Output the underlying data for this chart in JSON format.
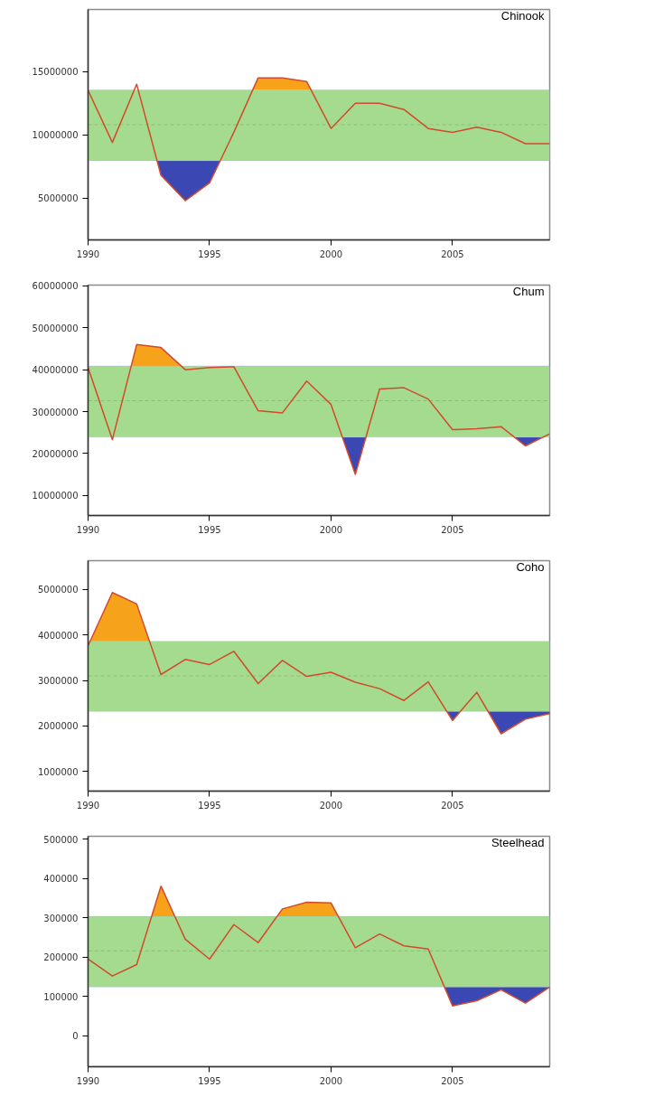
{
  "chart_data": [
    {
      "type": "line",
      "title": "Chinook",
      "x": [
        1990,
        1991,
        1992,
        1993,
        1994,
        1995,
        1996,
        1997,
        1998,
        1999,
        2000,
        2001,
        2002,
        2003,
        2004,
        2005,
        2006,
        2007,
        2008,
        2009
      ],
      "series": [
        {
          "color": "#d2492e",
          "values": [
            13500000,
            9400000,
            14000000,
            6800000,
            4800000,
            6200000,
            10200000,
            14500000,
            14500000,
            14200000,
            10500000,
            12500000,
            12500000,
            12000000,
            10500000,
            10200000,
            10600000,
            10200000,
            9300000,
            9300000
          ]
        },
        {
          "type": "area",
          "color": "#f7a21b",
          "x": [
            1996.78,
            1997,
            1998,
            1999,
            1999.18
          ],
          "values": [
            13550000,
            14500000,
            14500000,
            14200000,
            13550000
          ]
        },
        {
          "type": "area",
          "color": "#3b47b2",
          "x": [
            1992.84,
            1993,
            1994,
            1995,
            1995.44
          ],
          "values": [
            7950000,
            6800000,
            4800000,
            6200000,
            7950000
          ]
        }
      ],
      "xlim": [
        1990,
        2009
      ],
      "ylim": [
        1700000,
        19900000
      ],
      "xticks": [
        1990,
        1995,
        2000,
        2005
      ],
      "yticks": [
        5000000,
        10000000,
        15000000
      ],
      "bands": [
        {
          "axis": "y",
          "from": 7950000,
          "to": 13550000,
          "color": "#a5db8e"
        }
      ],
      "ref_lines": [
        {
          "axis": "y",
          "value": 10800000,
          "line_style": "dashed",
          "color": "#8cbf78"
        }
      ]
    },
    {
      "type": "line",
      "title": "Chum",
      "x": [
        1990,
        1991,
        1992,
        1993,
        1994,
        1995,
        1996,
        1997,
        1998,
        1999,
        2000,
        2001,
        2002,
        2003,
        2004,
        2005,
        2006,
        2007,
        2008,
        2009
      ],
      "series": [
        {
          "color": "#d2492e",
          "values": [
            40500000,
            23300000,
            46000000,
            45300000,
            40000000,
            40500000,
            40700000,
            30200000,
            29700000,
            37300000,
            31700000,
            15000000,
            35400000,
            35700000,
            33000000,
            25700000,
            25900000,
            26400000,
            21800000,
            24700000
          ]
        },
        {
          "type": "area",
          "color": "#f7a21b",
          "x": [
            1991.78,
            1992,
            1993,
            1993.83
          ],
          "values": [
            40900000,
            46000000,
            45300000,
            40900000
          ]
        },
        {
          "type": "area",
          "color": "#3b47b2",
          "x": [
            2000.47,
            2001,
            2001.44,
            2005,
            2007.54,
            2008,
            2008.72
          ],
          "values": [
            23900000,
            15000000,
            23900000,
            null,
            23900000,
            21800000,
            23900000
          ]
        }
      ],
      "xlim": [
        1990,
        2009
      ],
      "ylim": [
        5200000,
        60200000
      ],
      "xticks": [
        1990,
        1995,
        2000,
        2005
      ],
      "yticks": [
        10000000,
        20000000,
        30000000,
        40000000,
        50000000,
        60000000
      ],
      "bands": [
        {
          "axis": "y",
          "from": 23900000,
          "to": 40900000,
          "color": "#a5db8e"
        }
      ],
      "ref_lines": [
        {
          "axis": "y",
          "value": 32600000,
          "line_style": "dashed",
          "color": "#8cbf78"
        }
      ]
    },
    {
      "type": "line",
      "title": "Coho",
      "x": [
        1990,
        1991,
        1992,
        1993,
        1994,
        1995,
        1996,
        1997,
        1998,
        1999,
        2000,
        2001,
        2002,
        2003,
        2004,
        2005,
        2006,
        2007,
        2008,
        2009
      ],
      "series": [
        {
          "color": "#d2492e",
          "values": [
            3760000,
            4930000,
            4680000,
            3130000,
            3460000,
            3350000,
            3640000,
            2930000,
            3440000,
            3090000,
            3180000,
            2960000,
            2820000,
            2560000,
            2970000,
            2120000,
            2740000,
            1830000,
            2150000,
            2270000
          ]
        },
        {
          "type": "area",
          "color": "#f7a21b",
          "x": [
            1990.09,
            1991,
            1992,
            1992.53
          ],
          "values": [
            3860000,
            4930000,
            4680000,
            3860000
          ]
        },
        {
          "type": "area",
          "color": "#3b47b2",
          "x": [
            2004.76,
            2005,
            2005.32,
            2006,
            2006.46,
            2007,
            2008,
            2009,
            2009
          ],
          "values": [
            2320000,
            2120000,
            2320000,
            null,
            2320000,
            1830000,
            2150000,
            2270000,
            2320000
          ]
        }
      ],
      "xlim": [
        1990,
        2009
      ],
      "ylim": [
        570000,
        5630000
      ],
      "xticks": [
        1990,
        1995,
        2000,
        2005
      ],
      "yticks": [
        1000000,
        2000000,
        3000000,
        4000000,
        5000000
      ],
      "bands": [
        {
          "axis": "y",
          "from": 2320000,
          "to": 3860000,
          "color": "#a5db8e"
        }
      ],
      "ref_lines": [
        {
          "axis": "y",
          "value": 3100000,
          "line_style": "dashed",
          "color": "#8cbf78"
        }
      ]
    },
    {
      "type": "line",
      "title": "Steelhead",
      "x": [
        1990,
        1991,
        1992,
        1993,
        1994,
        1995,
        1996,
        1997,
        1998,
        1999,
        2000,
        2001,
        2002,
        2003,
        2004,
        2005,
        2006,
        2007,
        2008,
        2009
      ],
      "series": [
        {
          "color": "#d2492e",
          "values": [
            195000,
            152000,
            181000,
            381000,
            246000,
            195000,
            283000,
            237000,
            323000,
            340000,
            338000,
            224000,
            259000,
            229000,
            221000,
            76000,
            89000,
            117000,
            83000,
            124000
          ]
        },
        {
          "type": "area",
          "color": "#f7a21b",
          "x": [
            1992.62,
            1993,
            1993.57,
            1995,
            1997.78,
            1998,
            1999,
            2000,
            2000.3
          ],
          "values": [
            304000,
            381000,
            304000,
            null,
            304000,
            323000,
            340000,
            338000,
            304000
          ]
        },
        {
          "type": "area",
          "color": "#3b47b2",
          "x": [
            2004.67,
            2005,
            2006,
            2007,
            2008,
            2009
          ],
          "values": [
            124000,
            76000,
            89000,
            117000,
            83000,
            124000
          ]
        }
      ],
      "xlim": [
        1990,
        2009
      ],
      "ylim": [
        -79000,
        508000
      ],
      "xticks": [
        1990,
        1995,
        2000,
        2005
      ],
      "yticks": [
        0,
        100000,
        200000,
        300000,
        400000,
        500000
      ],
      "bands": [
        {
          "axis": "y",
          "from": 124000,
          "to": 304000,
          "color": "#a5db8e"
        }
      ],
      "ref_lines": [
        {
          "axis": "y",
          "value": 216000,
          "line_style": "dashed",
          "color": "#8cbf78"
        }
      ]
    }
  ]
}
